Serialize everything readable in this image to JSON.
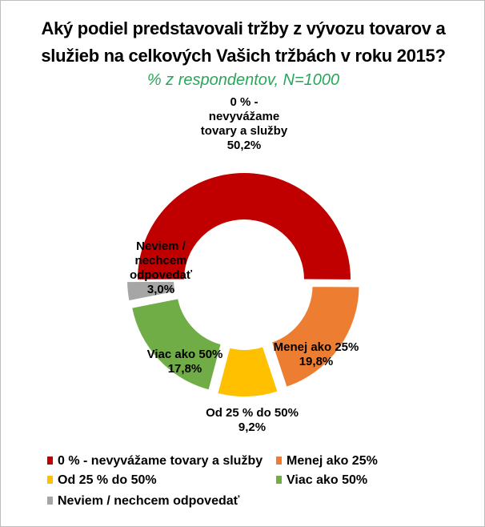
{
  "title_line1": "Aký  podiel predstavovali tržby z vývozu tovarov a",
  "title_line2": "služieb na celkových Vašich tržbách v roku 2015?",
  "subtitle": "% z respondentov, N=1000",
  "chart_data": {
    "type": "pie",
    "variant": "doughnut",
    "series": [
      {
        "name": "0 %  - nevyvážame tovary a služby",
        "value": 50.2,
        "label": "50,2%",
        "color": "#c00000",
        "exploded": false
      },
      {
        "name": "Menej ako 25%",
        "value": 19.8,
        "label": "19,8%",
        "color": "#ed7d31",
        "exploded": true
      },
      {
        "name": "Od 25 %  do 50%",
        "value": 9.2,
        "label": "9,2%",
        "color": "#ffc000",
        "exploded": true
      },
      {
        "name": "Viac ako 50%",
        "value": 17.8,
        "label": "17,8%",
        "color": "#70ad47",
        "exploded": true
      },
      {
        "name": "Neviem / nechcem odpovedať",
        "value": 3.0,
        "label": "3,0%",
        "color": "#a6a6a6",
        "exploded": true
      }
    ],
    "data_labels": [
      [
        "0 %  -",
        "nevyvážame",
        "tovary a služby",
        "50,2%"
      ],
      [
        "Menej ako 25%",
        "19,8%"
      ],
      [
        "Od 25 %  do 50%",
        "9,2%"
      ],
      [
        "Viac ako 50%",
        "17,8%"
      ],
      [
        "Neviem /",
        "nechcem",
        "odpovedať",
        "3,0%"
      ]
    ],
    "legend_position": "bottom"
  }
}
